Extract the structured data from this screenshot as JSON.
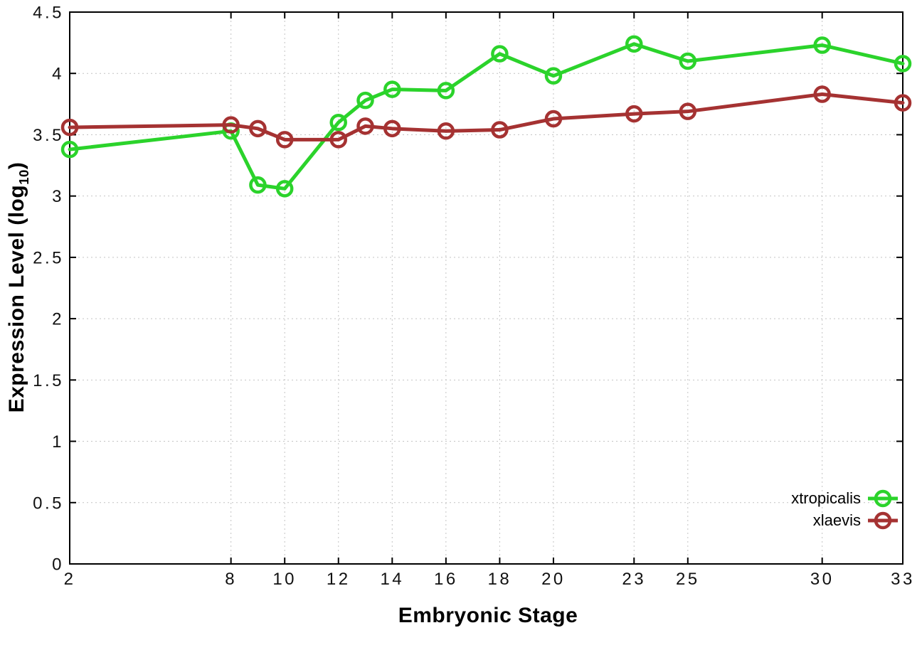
{
  "chart_data": {
    "type": "line",
    "title": "",
    "xlabel": "Embryonic Stage",
    "ylabel": "Expression Level (log10)",
    "ylabel_parts": {
      "main": "Expression Level (log",
      "sub": "10",
      "close": ")"
    },
    "x": [
      2,
      8,
      9,
      10,
      12,
      13,
      14,
      16,
      18,
      20,
      23,
      25,
      30,
      33
    ],
    "series": [
      {
        "name": "xtropicalis",
        "color": "#2bd32b",
        "marker": "open-circle",
        "values": [
          3.38,
          3.53,
          3.09,
          3.06,
          3.6,
          3.78,
          3.87,
          3.86,
          4.16,
          3.98,
          4.24,
          4.1,
          4.23,
          4.08
        ]
      },
      {
        "name": "xlaevis",
        "color": "#a53232",
        "marker": "open-circle",
        "values": [
          3.56,
          3.58,
          3.55,
          3.46,
          3.46,
          3.57,
          3.55,
          3.53,
          3.54,
          3.63,
          3.67,
          3.69,
          3.83,
          3.76
        ]
      }
    ],
    "xlim": [
      2,
      33
    ],
    "ylim": [
      0,
      4.5
    ],
    "xtick_labels": [
      "2",
      "8",
      "10",
      "12",
      "14",
      "16",
      "18",
      "20",
      "23",
      "25",
      "30",
      "33"
    ],
    "xticks": [
      2,
      8,
      10,
      12,
      14,
      16,
      18,
      20,
      23,
      25,
      30,
      33
    ],
    "ytick_labels": [
      "0",
      "0.5",
      "1",
      "1.5",
      "2",
      "2.5",
      "3",
      "3.5",
      "4",
      "4.5"
    ],
    "yticks": [
      0,
      0.5,
      1,
      1.5,
      2,
      2.5,
      3,
      3.5,
      4,
      4.5
    ],
    "grid": true,
    "legend_position": "bottom-right"
  },
  "style": {
    "axis_color": "#000000",
    "grid_color": "#c4c4c4",
    "tick_label_color": "#111111",
    "background": "#ffffff"
  }
}
